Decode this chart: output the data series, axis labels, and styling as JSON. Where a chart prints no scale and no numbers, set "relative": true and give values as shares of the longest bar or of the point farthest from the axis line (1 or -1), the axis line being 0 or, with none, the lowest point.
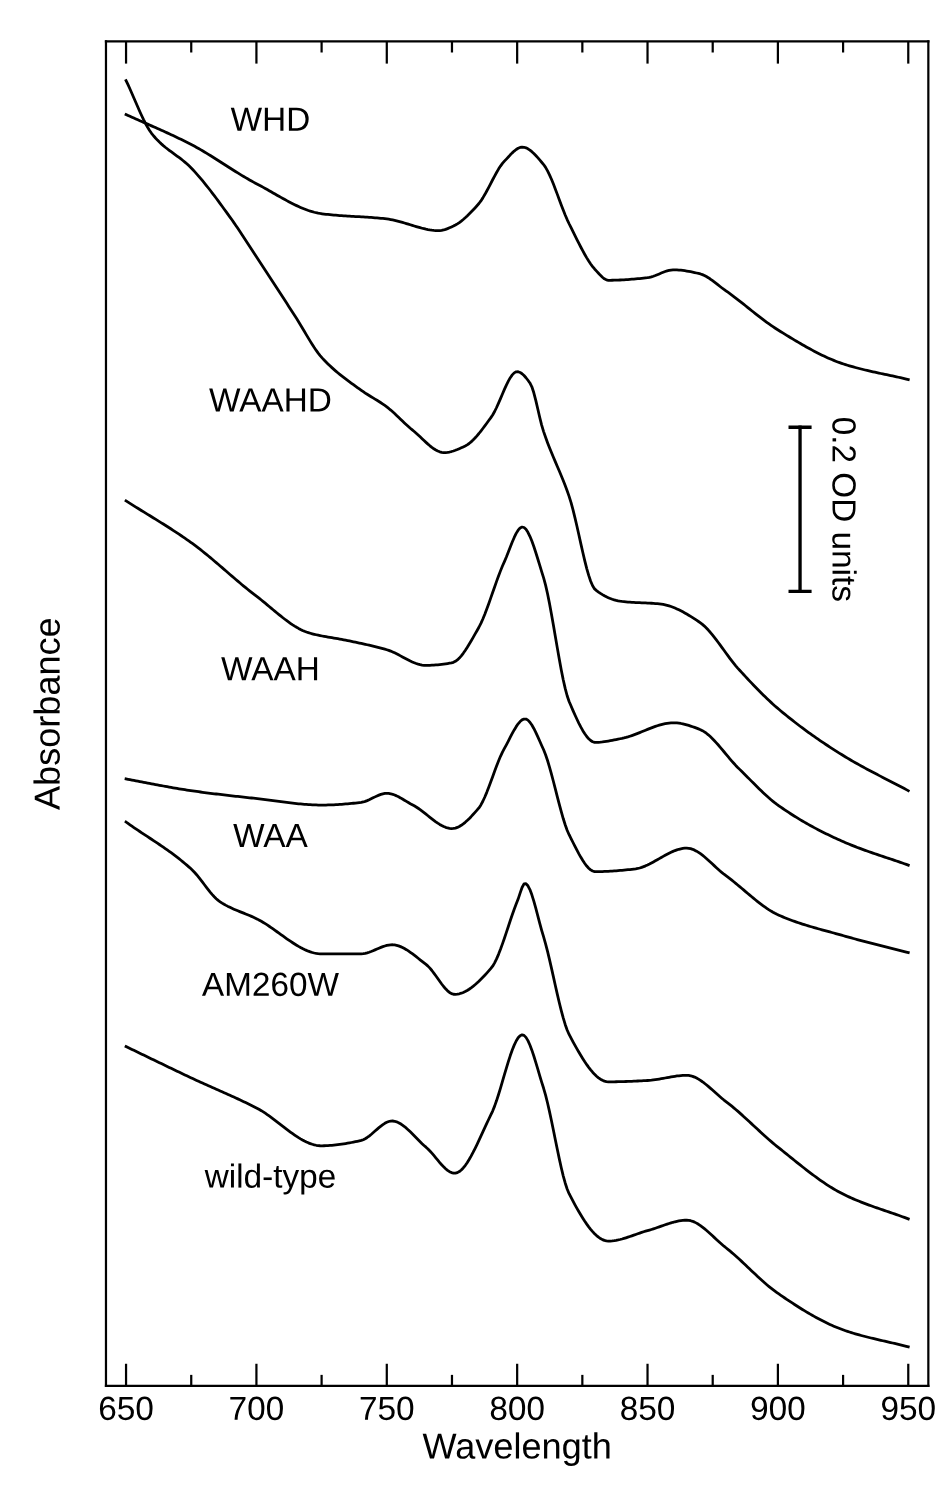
{
  "chart_data": {
    "type": "line",
    "xlabel": "Wavelength",
    "ylabel": "Absorbance",
    "relative": true,
    "xlim": [
      642.3,
      957.7
    ],
    "xticks": [
      650,
      {
        "value": 675,
        "label": null
      },
      700,
      {
        "value": 725,
        "label": null
      },
      750,
      {
        "value": 775,
        "label": null
      },
      800,
      {
        "value": 825,
        "label": null
      },
      850,
      {
        "value": 875,
        "label": null
      },
      900,
      {
        "value": 925,
        "label": null
      },
      950
    ],
    "tick_labels": "x",
    "grid": false,
    "legend": false,
    "marker": "none",
    "line_style": "solid",
    "series": [
      {
        "name": "WHD",
        "color": "#000000",
        "x": [
          650,
          675,
          700,
          725,
          750,
          770,
          775,
          785,
          795,
          802,
          810,
          820,
          830,
          835,
          850,
          860,
          870,
          880,
          900,
          925,
          950
        ],
        "values": [
          0.974,
          0.951,
          0.921,
          0.898,
          0.894,
          0.885,
          0.888,
          0.905,
          0.938,
          0.949,
          0.936,
          0.89,
          0.855,
          0.847,
          0.849,
          0.855,
          0.852,
          0.839,
          0.809,
          0.783,
          0.771
        ]
      },
      {
        "name": "WAAHD",
        "color": "#000000",
        "x": [
          650,
          660,
          675,
          690,
          700,
          715,
          725,
          740,
          750,
          760,
          772,
          780,
          790,
          800,
          805,
          810,
          820,
          830,
          840,
          855,
          870,
          885,
          900,
          925,
          950
        ],
        "values": [
          1.0,
          0.959,
          0.933,
          0.895,
          0.865,
          0.819,
          0.788,
          0.763,
          0.75,
          0.732,
          0.715,
          0.72,
          0.742,
          0.777,
          0.768,
          0.732,
          0.681,
          0.61,
          0.601,
          0.599,
          0.585,
          0.549,
          0.519,
          0.483,
          0.456
        ]
      },
      {
        "name": "WAAH",
        "color": "#000000",
        "x": [
          650,
          675,
          700,
          720,
          735,
          750,
          765,
          775,
          785,
          795,
          802,
          810,
          820,
          830,
          840,
          860,
          870,
          885,
          900,
          925,
          950
        ],
        "values": [
          0.678,
          0.646,
          0.605,
          0.577,
          0.571,
          0.564,
          0.552,
          0.554,
          0.58,
          0.631,
          0.658,
          0.62,
          0.524,
          0.493,
          0.496,
          0.508,
          0.503,
          0.473,
          0.445,
          0.417,
          0.399
        ]
      },
      {
        "name": "WAA",
        "color": "#000000",
        "x": [
          650,
          675,
          700,
          725,
          740,
          750,
          760,
          775,
          785,
          795,
          803,
          810,
          820,
          830,
          845,
          865,
          880,
          900,
          925,
          950
        ],
        "values": [
          0.465,
          0.456,
          0.45,
          0.445,
          0.447,
          0.454,
          0.445,
          0.427,
          0.442,
          0.488,
          0.511,
          0.488,
          0.422,
          0.394,
          0.396,
          0.412,
          0.391,
          0.361,
          0.345,
          0.332
        ]
      },
      {
        "name": "AM260W",
        "color": "#000000",
        "x": [
          650,
          675,
          686,
          700,
          725,
          740,
          752,
          765,
          776,
          790,
          800,
          803,
          810,
          820,
          835,
          850,
          865,
          880,
          900,
          925,
          950
        ],
        "values": [
          0.432,
          0.396,
          0.371,
          0.358,
          0.331,
          0.331,
          0.338,
          0.323,
          0.3,
          0.32,
          0.371,
          0.385,
          0.345,
          0.269,
          0.233,
          0.234,
          0.238,
          0.218,
          0.183,
          0.147,
          0.128
        ]
      },
      {
        "name": "wild-type",
        "color": "#000000",
        "x": [
          650,
          675,
          700,
          725,
          740,
          752,
          765,
          776,
          790,
          802,
          810,
          820,
          835,
          850,
          865,
          880,
          900,
          925,
          950
        ],
        "values": [
          0.26,
          0.236,
          0.213,
          0.184,
          0.188,
          0.203,
          0.183,
          0.163,
          0.208,
          0.269,
          0.229,
          0.147,
          0.111,
          0.119,
          0.127,
          0.106,
          0.071,
          0.043,
          0.03
        ]
      }
    ],
    "annotations": [
      "0.2 OD units"
    ]
  }
}
